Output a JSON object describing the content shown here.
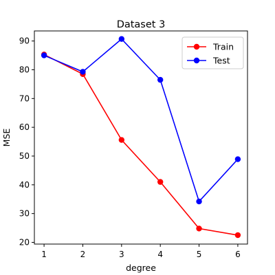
{
  "chart_data": {
    "type": "line",
    "title": "Dataset 3",
    "xlabel": "degree",
    "ylabel": "MSE",
    "x": [
      1,
      2,
      3,
      4,
      5,
      6
    ],
    "xlim": [
      0.75,
      6.25
    ],
    "ylim": [
      19.4,
      93.5
    ],
    "xticks": [
      1,
      2,
      3,
      4,
      5,
      6
    ],
    "yticks": [
      20,
      30,
      40,
      50,
      60,
      70,
      80,
      90
    ],
    "grid": false,
    "legend": "top-right",
    "series": [
      {
        "name": "Train",
        "color": "#ff0000",
        "marker": "circle",
        "values": [
          85.3,
          78.5,
          55.6,
          41.0,
          24.8,
          22.5
        ]
      },
      {
        "name": "Test",
        "color": "#0000ff",
        "marker": "circle",
        "values": [
          85.0,
          79.3,
          90.7,
          76.5,
          34.2,
          48.9
        ]
      }
    ]
  }
}
